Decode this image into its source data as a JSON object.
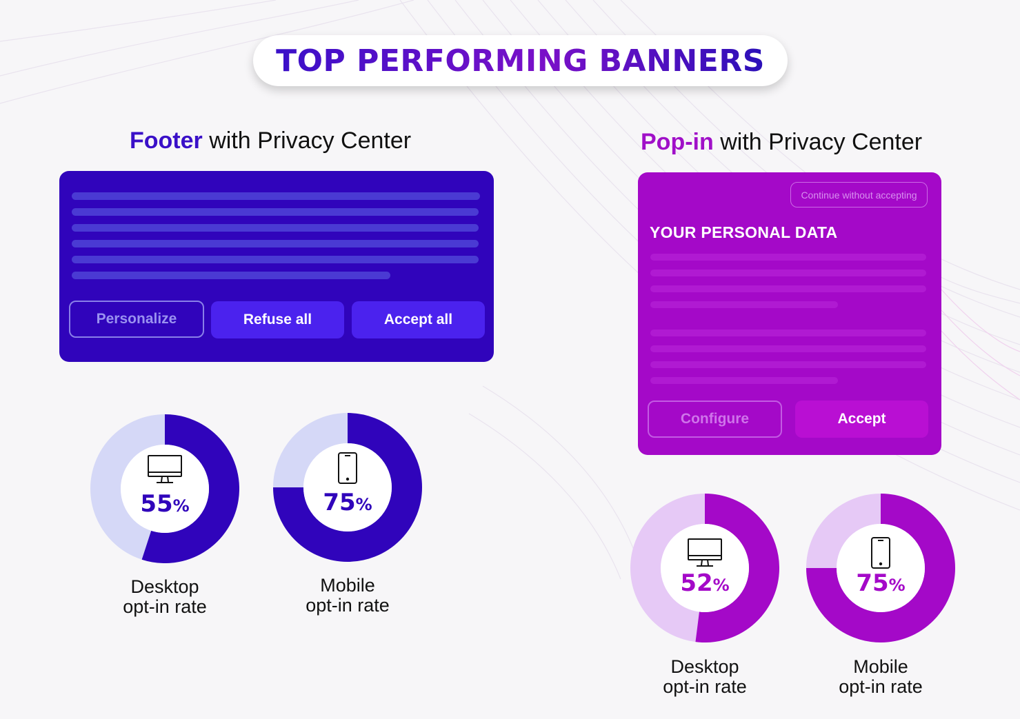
{
  "title": "TOP PERFORMING BANNERS",
  "left": {
    "heading_bold": "Footer",
    "heading_rest": "with Privacy Center",
    "buttons": {
      "personalize": "Personalize",
      "refuse": "Refuse all",
      "accept": "Accept all"
    },
    "desktop": {
      "value": "55",
      "sign": "%",
      "label_line1": "Desktop",
      "label_line2": "opt-in rate",
      "fraction": 0.55
    },
    "mobile": {
      "value": "75",
      "sign": "%",
      "label_line1": "Mobile",
      "label_line2": "opt-in rate",
      "fraction": 0.75
    }
  },
  "right": {
    "heading_bold": "Pop-in",
    "heading_rest": "with Privacy Center",
    "continue": "Continue without accepting",
    "popin_title": "YOUR PERSONAL DATA",
    "buttons": {
      "configure": "Configure",
      "accept": "Accept"
    },
    "desktop": {
      "value": "52",
      "sign": "%",
      "label_line1": "Desktop",
      "label_line2": "opt-in rate",
      "fraction": 0.52
    },
    "mobile": {
      "value": "75",
      "sign": "%",
      "label_line1": "Mobile",
      "label_line2": "opt-in rate",
      "fraction": 0.75
    }
  },
  "colors": {
    "blue": "#3004bb",
    "blue_light": "#d5d8f7",
    "purple": "#a409c8",
    "purple_light": "#e6c9f6"
  },
  "icons": [
    "desktop-monitor-icon",
    "mobile-phone-icon"
  ]
}
